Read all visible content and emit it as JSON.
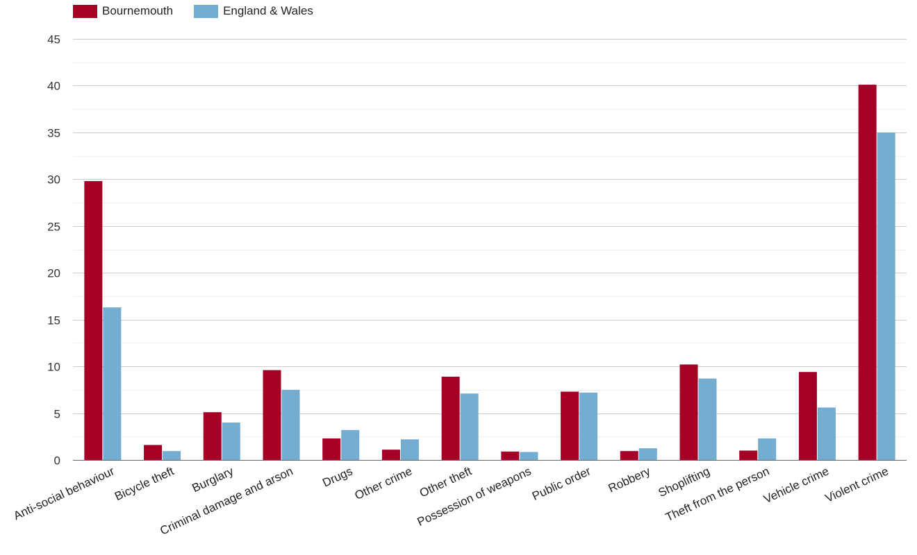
{
  "chart_data": {
    "type": "bar",
    "categories": [
      "Anti-social behaviour",
      "Bicycle theft",
      "Burglary",
      "Criminal damage and arson",
      "Drugs",
      "Other crime",
      "Other theft",
      "Possession of weapons",
      "Public order",
      "Robbery",
      "Shoplifting",
      "Theft from the person",
      "Vehicle crime",
      "Violent crime"
    ],
    "series": [
      {
        "name": "Bournemouth",
        "color": "#a50026",
        "values": [
          29.8,
          1.6,
          5.1,
          9.6,
          2.3,
          1.1,
          8.9,
          0.9,
          7.3,
          0.95,
          10.2,
          1.0,
          9.4,
          40.1
        ]
      },
      {
        "name": "England & Wales",
        "color": "#74add1",
        "values": [
          16.3,
          0.95,
          4.0,
          7.5,
          3.2,
          2.2,
          7.1,
          0.85,
          7.2,
          1.25,
          8.7,
          2.3,
          5.6,
          35.0
        ]
      }
    ],
    "yticks": [
      0,
      5,
      10,
      15,
      20,
      25,
      30,
      35,
      40,
      45
    ],
    "ylim": [
      0,
      45
    ],
    "grid": true,
    "legend_position": "top-left"
  }
}
